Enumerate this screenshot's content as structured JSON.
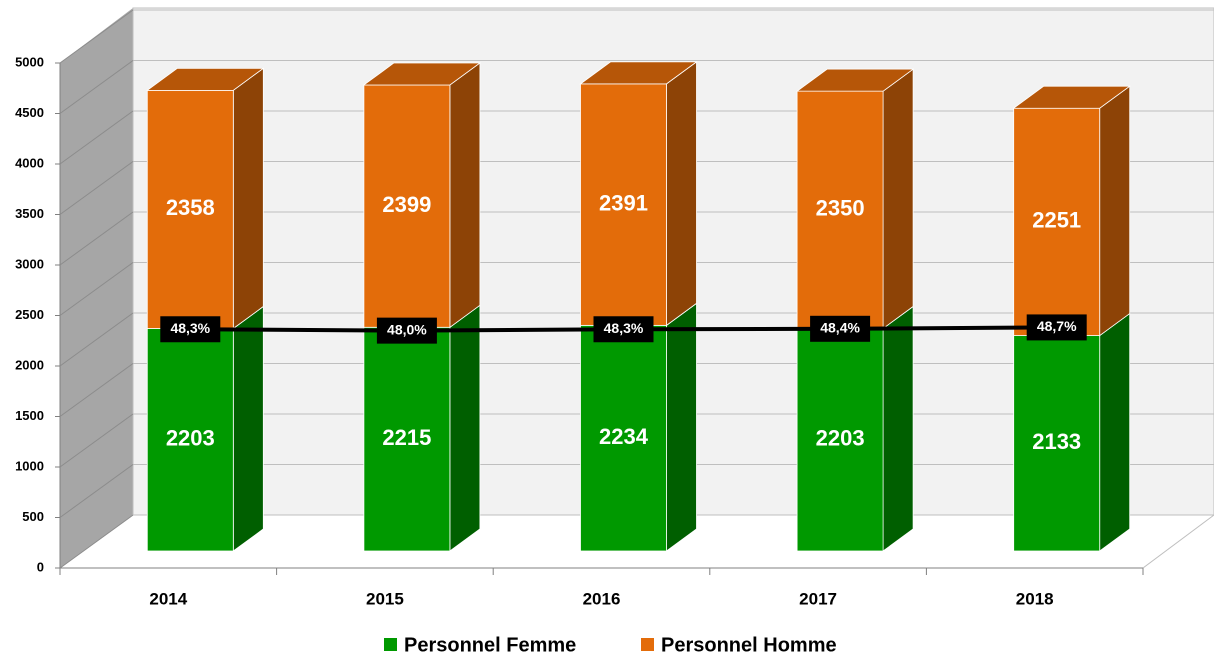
{
  "chart_data": {
    "type": "bar3d_stacked",
    "categories": [
      "2014",
      "2015",
      "2016",
      "2017",
      "2018"
    ],
    "series": [
      {
        "name": "Personnel Femme",
        "color": "#009900",
        "values": [
          2203,
          2215,
          2234,
          2203,
          2133
        ]
      },
      {
        "name": "Personnel Homme",
        "color": "#e36c0a",
        "values": [
          2358,
          2399,
          2391,
          2350,
          2251
        ]
      }
    ],
    "line": {
      "type": "line",
      "axis": "y2",
      "color": "#000000",
      "values": [
        48.3,
        48.0,
        48.3,
        48.4,
        48.7
      ],
      "value_labels": [
        "48,3%",
        "48,0%",
        "48,3%",
        "48,4%",
        "48,7%"
      ]
    },
    "ylim": [
      0,
      5000
    ],
    "yticks": [
      0,
      500,
      1000,
      1500,
      2000,
      2500,
      3000,
      3500,
      4000,
      4500,
      5000
    ],
    "y2lim": [
      0,
      110
    ],
    "grid": true,
    "legend": "bottom"
  }
}
